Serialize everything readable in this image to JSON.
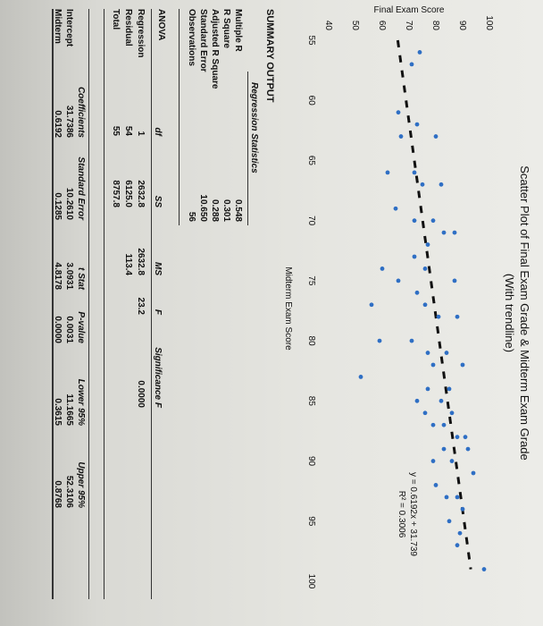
{
  "chart_data": {
    "type": "scatter",
    "title": "Scatter Plot of Final Exam Grade & Midterm Exam Grade",
    "subtitle": "(With trendline)",
    "xlabel": "Midterm Exam Score",
    "ylabel": "Final Exam Score",
    "xlim": [
      55,
      100
    ],
    "ylim": [
      40,
      100
    ],
    "xticks": [
      "55",
      "60",
      "65",
      "70",
      "75",
      "80",
      "85",
      "90",
      "95",
      "100"
    ],
    "yticks": [
      "40",
      "50",
      "60",
      "70",
      "80",
      "90",
      "100"
    ],
    "equation": "y = 0.6192x + 31.739",
    "r2": "R² = 0.3006",
    "trendline": {
      "slope": 0.6192,
      "intercept": 31.7386
    },
    "points": [
      [
        56,
        74
      ],
      [
        57,
        71
      ],
      [
        61,
        66
      ],
      [
        62,
        73
      ],
      [
        63,
        67
      ],
      [
        63,
        80
      ],
      [
        66,
        62
      ],
      [
        66,
        72
      ],
      [
        67,
        75
      ],
      [
        67,
        82
      ],
      [
        69,
        65
      ],
      [
        70,
        72
      ],
      [
        70,
        79
      ],
      [
        71,
        83
      ],
      [
        71,
        87
      ],
      [
        72,
        77
      ],
      [
        73,
        72
      ],
      [
        74,
        60
      ],
      [
        74,
        76
      ],
      [
        75,
        66
      ],
      [
        75,
        87
      ],
      [
        76,
        73
      ],
      [
        77,
        56
      ],
      [
        77,
        76
      ],
      [
        78,
        81
      ],
      [
        78,
        88
      ],
      [
        80,
        59
      ],
      [
        80,
        71
      ],
      [
        81,
        77
      ],
      [
        81,
        84
      ],
      [
        82,
        79
      ],
      [
        82,
        90
      ],
      [
        83,
        52
      ],
      [
        84,
        77
      ],
      [
        84,
        85
      ],
      [
        85,
        73
      ],
      [
        85,
        82
      ],
      [
        86,
        76
      ],
      [
        86,
        86
      ],
      [
        87,
        79
      ],
      [
        87,
        83
      ],
      [
        88,
        88
      ],
      [
        88,
        91
      ],
      [
        89,
        83
      ],
      [
        89,
        92
      ],
      [
        90,
        79
      ],
      [
        90,
        86
      ],
      [
        91,
        94
      ],
      [
        92,
        80
      ],
      [
        93,
        84
      ],
      [
        93,
        88
      ],
      [
        94,
        90
      ],
      [
        95,
        85
      ],
      [
        96,
        89
      ],
      [
        97,
        88
      ],
      [
        99,
        98
      ]
    ]
  },
  "summary": {
    "title": "SUMMARY OUTPUT",
    "reg_stats_header": "Regression Statistics",
    "reg_stats": [
      {
        "label": "Multiple R",
        "value": "0.548"
      },
      {
        "label": "R Square",
        "value": "0.301"
      },
      {
        "label": "Adjusted R Square",
        "value": "0.288"
      },
      {
        "label": "Standard Error",
        "value": "10.650"
      },
      {
        "label": "Observations",
        "value": "56"
      }
    ],
    "anova_title": "ANOVA",
    "anova_headers": [
      "df",
      "SS",
      "MS",
      "F",
      "Significance F"
    ],
    "anova_rows": [
      {
        "label": "Regression",
        "df": "1",
        "ss": "2632.8",
        "ms": "2632.8",
        "f": "23.2",
        "sig": "0.0000"
      },
      {
        "label": "Residual",
        "df": "54",
        "ss": "6125.0",
        "ms": "113.4",
        "f": "",
        "sig": ""
      },
      {
        "label": "Total",
        "df": "55",
        "ss": "8757.8",
        "ms": "",
        "f": "",
        "sig": ""
      }
    ],
    "coef_headers": [
      "Coefficients",
      "Standard Error",
      "t Stat",
      "P-value",
      "Lower 95%",
      "Upper 95%"
    ],
    "coef_rows": [
      {
        "label": "Intercept",
        "coef": "31.7386",
        "se": "10.2610",
        "t": "3.0931",
        "p": "0.0031",
        "lo": "11.1665",
        "hi": "52.3106"
      },
      {
        "label": "Midterm",
        "coef": "0.6192",
        "se": "0.1285",
        "t": "4.8178",
        "p": "0.0000",
        "lo": "0.3615",
        "hi": "0.8768"
      }
    ]
  },
  "colors": {
    "point": "#2f6fc4",
    "trend": "#111111"
  }
}
